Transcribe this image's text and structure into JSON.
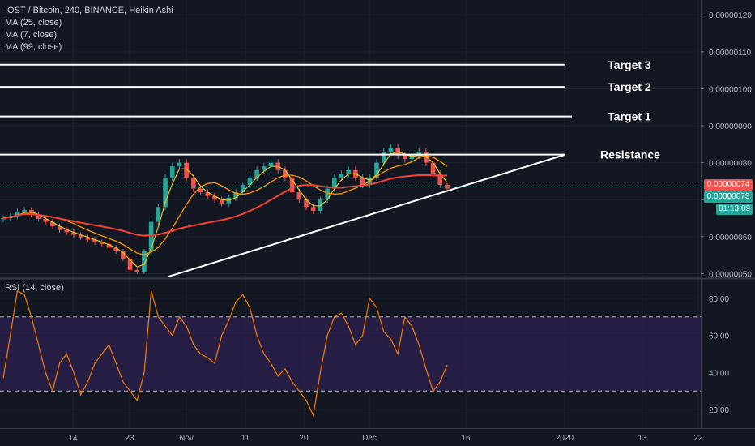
{
  "header": {
    "symbol_line": "IOST / Bitcoin, 240, BINANCE, Heikin Ashi",
    "indicators": [
      "MA (25, close)",
      "MA (7, close)",
      "MA (99, close)"
    ]
  },
  "rsi_pane": {
    "title": "RSI (14, close)"
  },
  "price_tags": {
    "tag1": "0.00000074",
    "tag2": "0.00000073",
    "countdown": "01:13:09"
  },
  "colors": {
    "background": "#131722",
    "up_candle": "#26a69a",
    "down_candle": "#ef5350",
    "ma25": "#ff9800",
    "ma7": "#e6c229",
    "ma99": "#f44336",
    "rsi_line": "#f57c00",
    "rsi_band": "#2a1f4a"
  },
  "chart_data": [
    {
      "type": "candlestick",
      "x_tick_labels": [
        "14",
        "23",
        "Nov",
        "11",
        "20",
        "Dec",
        "16",
        "2020",
        "13",
        "22"
      ],
      "y_tick_labels": [
        "0.00000050",
        "0.00000060",
        "0.00000070",
        "0.00000080",
        "0.00000090",
        "0.00000100",
        "0.00000110",
        "0.00000120"
      ],
      "ylim": [
        4.9e-07,
        1.24e-06
      ],
      "annotations": [
        {
          "label": "Target 3",
          "price": 1.065e-06
        },
        {
          "label": "Target 2",
          "price": 1.005e-06
        },
        {
          "label": "Target 1",
          "price": 9.25e-07
        },
        {
          "label": "Resistance",
          "price": 8.22e-07
        }
      ],
      "support_trendline": {
        "from_date": "Oct 27",
        "from_price": 4.92e-07,
        "to_date": "Jan 1",
        "to_price": 8.22e-07
      },
      "candles_close": [
        6.5e-07,
        6.55e-07,
        6.68e-07,
        6.72e-07,
        6.6e-07,
        6.48e-07,
        6.4e-07,
        6.28e-07,
        6.18e-07,
        6.12e-07,
        6.05e-07,
        5.98e-07,
        5.92e-07,
        5.85e-07,
        5.8e-07,
        5.7e-07,
        5.6e-07,
        5.4e-07,
        5.1e-07,
        5.05e-07,
        5.6e-07,
        6.4e-07,
        6.8e-07,
        7.6e-07,
        7.9e-07,
        8e-07,
        7.6e-07,
        7.3e-07,
        7.2e-07,
        7.1e-07,
        7e-07,
        6.9e-07,
        7.05e-07,
        7.2e-07,
        7.4e-07,
        7.6e-07,
        7.8e-07,
        7.9e-07,
        8e-07,
        7.8e-07,
        7.6e-07,
        7.2e-07,
        7e-07,
        6.8e-07,
        6.7e-07,
        7e-07,
        7.3e-07,
        7.6e-07,
        7.7e-07,
        7.8e-07,
        7.6e-07,
        7.4e-07,
        7.6e-07,
        8e-07,
        8.3e-07,
        8.4e-07,
        8.2e-07,
        8.1e-07,
        8.2e-07,
        8.3e-07,
        8e-07,
        7.7e-07,
        7.4e-07,
        7.3e-07
      ],
      "rsi": {
        "values": [
          37,
          60,
          84,
          82,
          70,
          55,
          40,
          30,
          45,
          50,
          40,
          28,
          35,
          45,
          50,
          55,
          45,
          35,
          30,
          25,
          40,
          84,
          70,
          65,
          60,
          70,
          65,
          55,
          50,
          48,
          45,
          60,
          68,
          78,
          82,
          75,
          60,
          50,
          45,
          38,
          42,
          35,
          30,
          25,
          17,
          40,
          60,
          70,
          72,
          65,
          55,
          60,
          80,
          75,
          62,
          58,
          50,
          70,
          65,
          55,
          42,
          30,
          35,
          44
        ],
        "ylim": [
          10,
          90
        ],
        "levels": [
          30,
          70
        ],
        "y_tick_labels": [
          "20.00",
          "40.00",
          "60.00",
          "80.00"
        ]
      }
    }
  ]
}
